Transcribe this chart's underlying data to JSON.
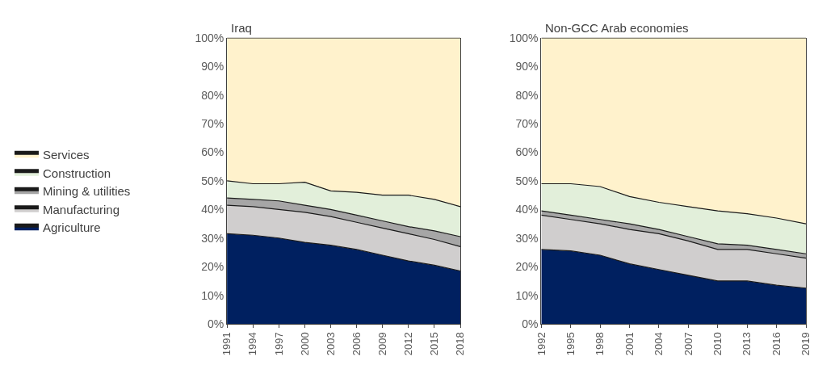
{
  "chart_data": [
    {
      "type": "area",
      "stacked": true,
      "title": "Iraq",
      "legend": "left",
      "x": [
        1991,
        1994,
        1997,
        2000,
        2003,
        2006,
        2009,
        2012,
        2015,
        2018
      ],
      "xlim": [
        1991,
        2018
      ],
      "xticks": [
        1991,
        1994,
        1997,
        2000,
        2003,
        2006,
        2009,
        2012,
        2015,
        2018
      ],
      "ylim": [
        0,
        100
      ],
      "yticks": [
        {
          "value": 0,
          "label": "0%"
        },
        {
          "value": 10,
          "label": "10%"
        },
        {
          "value": 20,
          "label": "20%"
        },
        {
          "value": 30,
          "label": "30%"
        },
        {
          "value": 40,
          "label": "40%"
        },
        {
          "value": 50,
          "label": "50%"
        },
        {
          "value": 60,
          "label": "60%"
        },
        {
          "value": 70,
          "label": "70%"
        },
        {
          "value": 80,
          "label": "80%"
        },
        {
          "value": 90,
          "label": "90%"
        },
        {
          "value": 100,
          "label": "100%"
        }
      ],
      "series": [
        {
          "name": "Agriculture",
          "color": "#002060",
          "values": [
            31.5,
            31,
            30,
            28.5,
            27.5,
            26,
            24,
            22,
            20.5,
            18.5
          ]
        },
        {
          "name": "Manufacturing",
          "color": "#d0cece",
          "values": [
            10,
            10,
            10,
            10.5,
            10,
            9.5,
            9.5,
            9.5,
            9,
            8.5
          ]
        },
        {
          "name": "Mining & utilities",
          "color": "#a6a6a6",
          "values": [
            2.5,
            2.5,
            3,
            2.5,
            2.5,
            2.5,
            2.5,
            2.5,
            3,
            3.5
          ]
        },
        {
          "name": "Construction",
          "color": "#e2efda",
          "values": [
            6,
            5.5,
            6,
            8,
            6.5,
            8,
            9,
            11,
            11,
            10.5
          ]
        },
        {
          "name": "Services",
          "color": "#fff2cc",
          "values": [
            50,
            51,
            51,
            50.5,
            53.5,
            54,
            55,
            55,
            56.5,
            59
          ]
        }
      ]
    },
    {
      "type": "area",
      "stacked": true,
      "title": "Non-GCC Arab economies",
      "legend": false,
      "x": [
        1992,
        1995,
        1998,
        2001,
        2004,
        2007,
        2010,
        2013,
        2016,
        2019
      ],
      "xlim": [
        1992,
        2019
      ],
      "xticks": [
        1992,
        1995,
        1998,
        2001,
        2004,
        2007,
        2010,
        2013,
        2016,
        2019
      ],
      "ylim": [
        0,
        100
      ],
      "yticks": [
        {
          "value": 0,
          "label": "0%"
        },
        {
          "value": 10,
          "label": "10%"
        },
        {
          "value": 20,
          "label": "20%"
        },
        {
          "value": 30,
          "label": "30%"
        },
        {
          "value": 40,
          "label": "40%"
        },
        {
          "value": 50,
          "label": "50%"
        },
        {
          "value": 60,
          "label": "60%"
        },
        {
          "value": 70,
          "label": "70%"
        },
        {
          "value": 80,
          "label": "80%"
        },
        {
          "value": 90,
          "label": "90%"
        },
        {
          "value": 100,
          "label": "100%"
        }
      ],
      "series": [
        {
          "color": "#002060",
          "values": [
            26,
            25.5,
            24,
            21,
            19,
            17,
            15,
            15,
            13.5,
            12.5
          ]
        },
        {
          "color": "#d0cece",
          "values": [
            12,
            11,
            11,
            12,
            12.5,
            12,
            11,
            11,
            11,
            10.5
          ]
        },
        {
          "color": "#a6a6a6",
          "values": [
            1.5,
            1.5,
            1.5,
            2,
            1.5,
            1.5,
            2,
            1.5,
            1.5,
            1.5
          ]
        },
        {
          "color": "#e2efda",
          "values": [
            9.5,
            11,
            11.5,
            9.5,
            9.5,
            10.5,
            11.5,
            11,
            11,
            10.5
          ]
        },
        {
          "color": "#fff2cc",
          "values": [
            51,
            51,
            52,
            55.5,
            57.5,
            59,
            60.5,
            61.5,
            63,
            65
          ]
        }
      ]
    }
  ]
}
